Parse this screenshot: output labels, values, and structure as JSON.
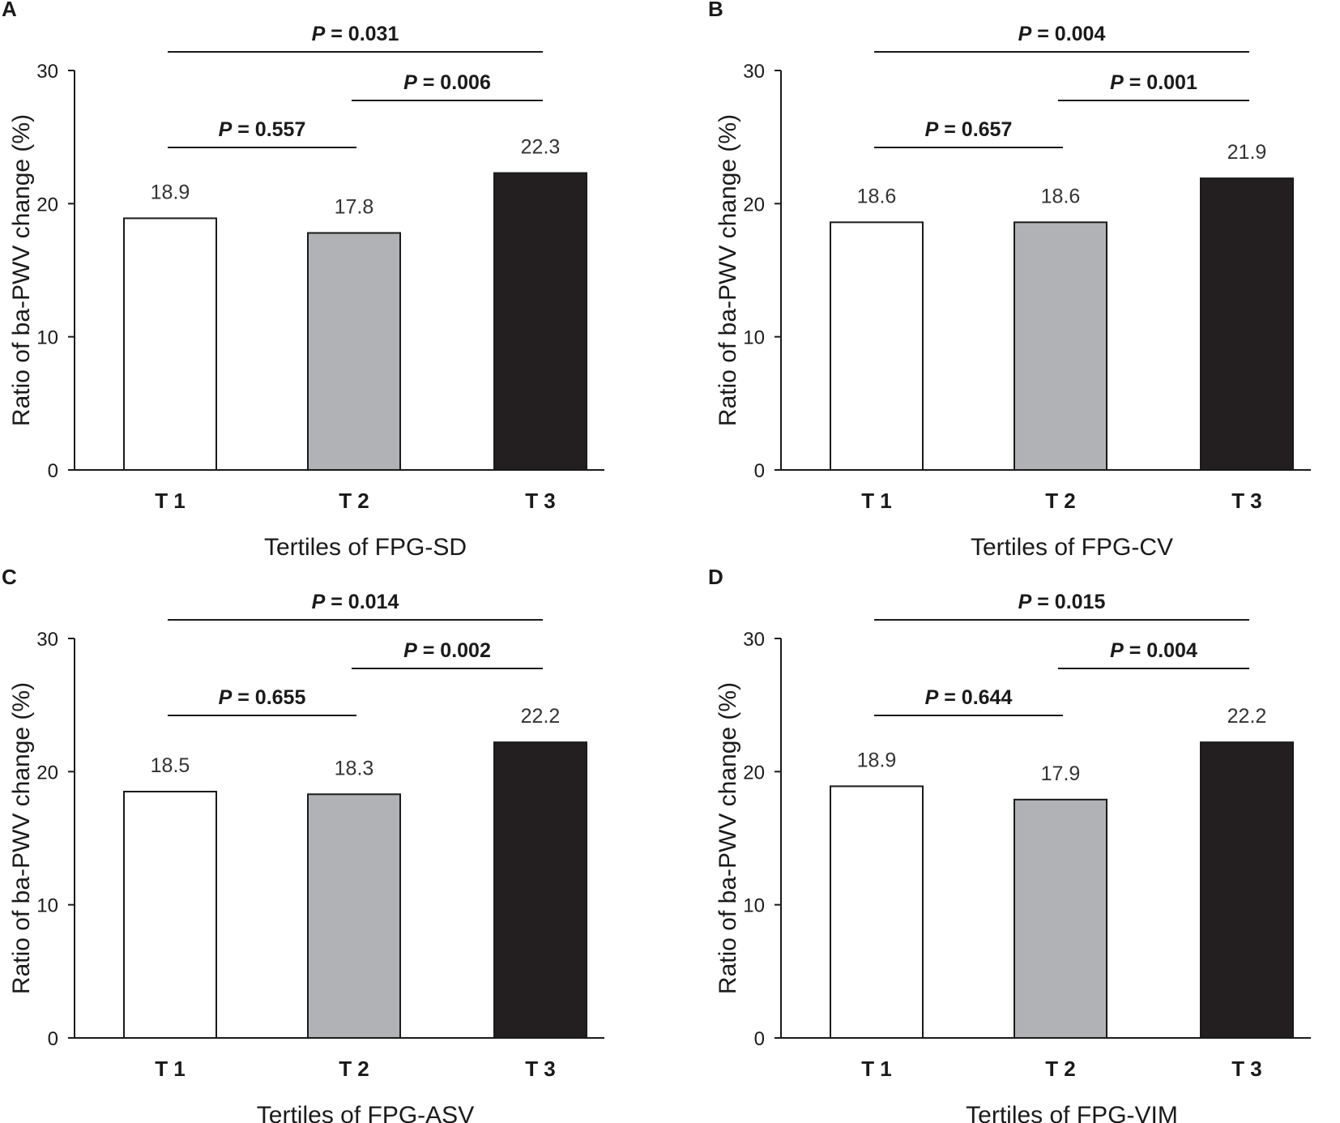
{
  "chart_data": [
    {
      "panel": "A",
      "type": "bar",
      "categories": [
        "T 1",
        "T 2",
        "T 3"
      ],
      "values": [
        18.9,
        17.8,
        22.3
      ],
      "value_labels": [
        "18.9",
        "17.8",
        "22.3"
      ],
      "bar_colors": [
        "#ffffff",
        "#b1b2b5",
        "#231f20"
      ],
      "xlabel": "Tertiles of FPG-SD",
      "ylabel": "Ratio of ba-PWV change (%)",
      "ylim": [
        0,
        30
      ],
      "yticks": [
        "0",
        "10",
        "20",
        "30"
      ],
      "comparisons": [
        {
          "from": 0,
          "to": 1,
          "p_prefix": "P",
          "p_text": " = 0.557"
        },
        {
          "from": 1,
          "to": 2,
          "p_prefix": "P",
          "p_text": " = 0.006"
        },
        {
          "from": 0,
          "to": 2,
          "p_prefix": "P",
          "p_text": " = 0.031"
        }
      ]
    },
    {
      "panel": "B",
      "type": "bar",
      "categories": [
        "T 1",
        "T 2",
        "T 3"
      ],
      "values": [
        18.6,
        18.6,
        21.9
      ],
      "value_labels": [
        "18.6",
        "18.6",
        "21.9"
      ],
      "bar_colors": [
        "#ffffff",
        "#b1b2b5",
        "#231f20"
      ],
      "xlabel": "Tertiles of FPG-CV",
      "ylabel": "Ratio of ba-PWV change (%)",
      "ylim": [
        0,
        30
      ],
      "yticks": [
        "0",
        "10",
        "20",
        "30"
      ],
      "comparisons": [
        {
          "from": 0,
          "to": 1,
          "p_prefix": "P",
          "p_text": " = 0.657"
        },
        {
          "from": 1,
          "to": 2,
          "p_prefix": "P",
          "p_text": " = 0.001"
        },
        {
          "from": 0,
          "to": 2,
          "p_prefix": "P",
          "p_text": " = 0.004"
        }
      ]
    },
    {
      "panel": "C",
      "type": "bar",
      "categories": [
        "T 1",
        "T 2",
        "T 3"
      ],
      "values": [
        18.5,
        18.3,
        22.2
      ],
      "value_labels": [
        "18.5",
        "18.3",
        "22.2"
      ],
      "bar_colors": [
        "#ffffff",
        "#b1b2b5",
        "#231f20"
      ],
      "xlabel": "Tertiles of FPG-ASV",
      "ylabel": "Ratio of ba-PWV change (%)",
      "ylim": [
        0,
        30
      ],
      "yticks": [
        "0",
        "10",
        "20",
        "30"
      ],
      "comparisons": [
        {
          "from": 0,
          "to": 1,
          "p_prefix": "P",
          "p_text": " = 0.655"
        },
        {
          "from": 1,
          "to": 2,
          "p_prefix": "P",
          "p_text": " = 0.002"
        },
        {
          "from": 0,
          "to": 2,
          "p_prefix": "P",
          "p_text": " = 0.014"
        }
      ]
    },
    {
      "panel": "D",
      "type": "bar",
      "categories": [
        "T 1",
        "T 2",
        "T 3"
      ],
      "values": [
        18.9,
        17.9,
        22.2
      ],
      "value_labels": [
        "18.9",
        "17.9",
        "22.2"
      ],
      "bar_colors": [
        "#ffffff",
        "#b1b2b5",
        "#231f20"
      ],
      "xlabel": "Tertiles of FPG-VIM",
      "ylabel": "Ratio of ba-PWV change (%)",
      "ylim": [
        0,
        30
      ],
      "yticks": [
        "0",
        "10",
        "20",
        "30"
      ],
      "comparisons": [
        {
          "from": 0,
          "to": 1,
          "p_prefix": "P",
          "p_text": " = 0.644"
        },
        {
          "from": 1,
          "to": 2,
          "p_prefix": "P",
          "p_text": " = 0.004"
        },
        {
          "from": 0,
          "to": 2,
          "p_prefix": "P",
          "p_text": " = 0.015"
        }
      ]
    }
  ]
}
